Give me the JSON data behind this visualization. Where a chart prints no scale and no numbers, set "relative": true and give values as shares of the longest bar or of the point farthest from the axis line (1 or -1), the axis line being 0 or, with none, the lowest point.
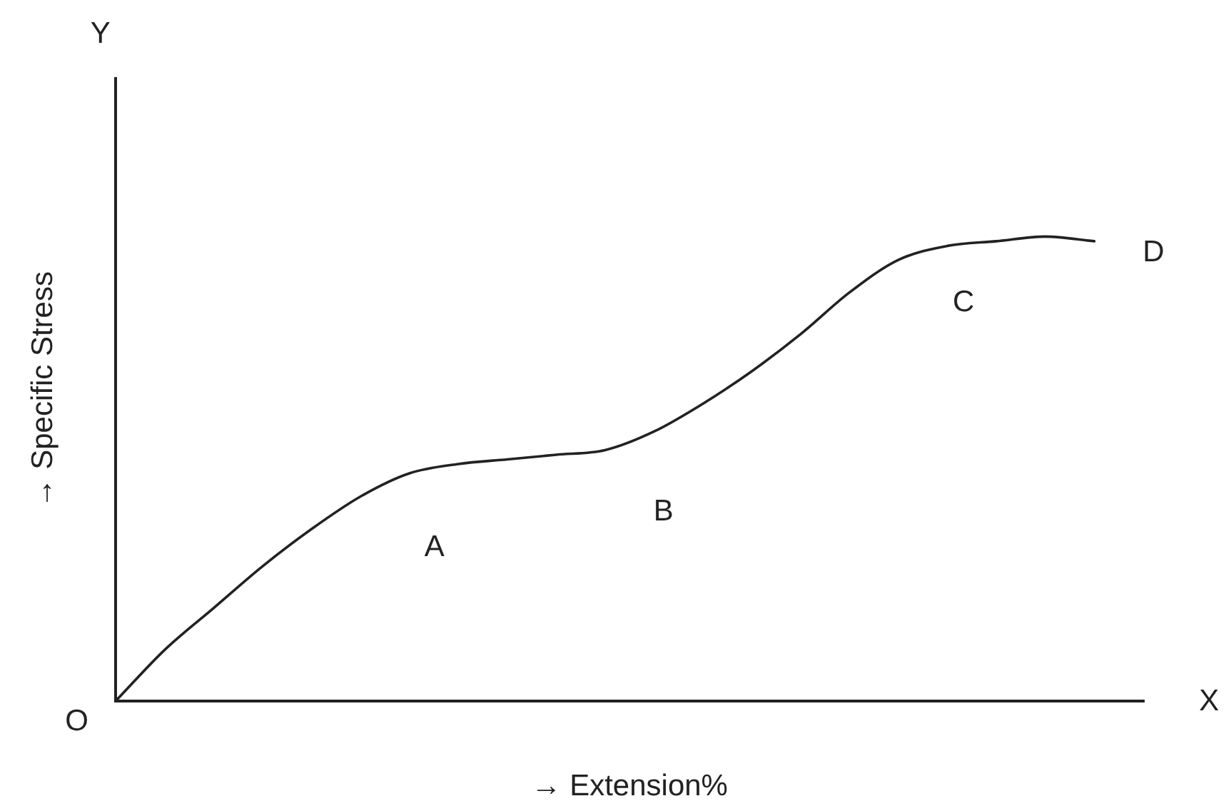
{
  "chart_data": {
    "type": "line",
    "xlabel": "→ Extension%",
    "ylabel": "→ Specific Stress",
    "annotations": [
      "O",
      "A",
      "B",
      "C",
      "D",
      "X",
      "Y"
    ],
    "categories": [
      null,
      null,
      null,
      null,
      null,
      null,
      null,
      null,
      null,
      null,
      null,
      null,
      null,
      null,
      null,
      null,
      null,
      null,
      null,
      null,
      null,
      null
    ],
    "values": [
      0,
      0.11,
      0.2,
      0.29,
      0.37,
      0.44,
      0.49,
      0.51,
      0.52,
      0.53,
      0.54,
      0.58,
      0.64,
      0.71,
      0.79,
      0.88,
      0.95,
      0.98,
      0.99,
      1,
      0.99,
      null
    ],
    "color": "#222222",
    "relative": true,
    "marker": "none",
    "line_style": "solid",
    "tick_labels": false
  }
}
